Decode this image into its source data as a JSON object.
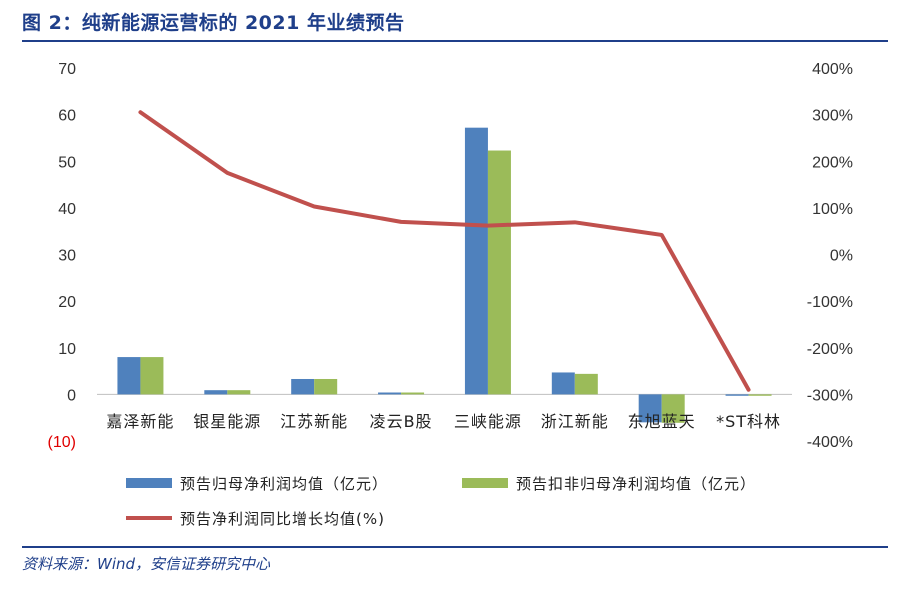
{
  "figure": {
    "title": "图 2：纯新能源运营标的 2021 年业绩预告",
    "source": "资料来源：Wind，安信证券研究中心"
  },
  "colors": {
    "title": "#1f3f8a",
    "rule": "#1f3f8a",
    "series_blue": "#4f81bd",
    "series_green": "#9bbb59",
    "series_red": "#c0504d",
    "negative_tick": "#e00000"
  },
  "chart_data": {
    "type": "bar",
    "categories": [
      "嘉泽新能",
      "银星能源",
      "江苏新能",
      "凌云B股",
      "三峡能源",
      "浙江新能",
      "东旭蓝天",
      "*ST科林"
    ],
    "series": [
      {
        "name": "预告归母净利润均值（亿元）",
        "type": "bar",
        "axis": "left",
        "values": [
          8.0,
          0.9,
          3.3,
          0.4,
          57.2,
          4.7,
          -6.0,
          -0.3
        ]
      },
      {
        "name": "预告扣非归母净利润均值（亿元）",
        "type": "bar",
        "axis": "left",
        "values": [
          8.0,
          0.9,
          3.3,
          0.4,
          52.3,
          4.4,
          -6.1,
          -0.3
        ]
      },
      {
        "name": "预告净利润同比增长均值(%)",
        "type": "line",
        "axis": "right",
        "values": [
          305,
          175,
          103,
          70,
          62,
          69,
          42,
          -290
        ]
      }
    ],
    "left_axis": {
      "ylim": [
        -10,
        70
      ],
      "ticks": [
        -10,
        0,
        10,
        20,
        30,
        40,
        50,
        60,
        70
      ],
      "tick_labels": [
        "(10)",
        "0",
        "10",
        "20",
        "30",
        "40",
        "50",
        "60",
        "70"
      ]
    },
    "right_axis": {
      "ylim": [
        -400,
        400
      ],
      "ticks": [
        -400,
        -300,
        -200,
        -100,
        0,
        100,
        200,
        300,
        400
      ],
      "tick_labels": [
        "-400%",
        "-300%",
        "-200%",
        "-100%",
        "0%",
        "100%",
        "200%",
        "300%",
        "400%"
      ]
    },
    "legend_position": "bottom",
    "grid": false
  }
}
